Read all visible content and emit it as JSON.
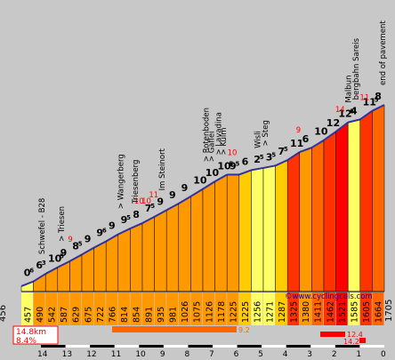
{
  "chart_data": {
    "type": "bar",
    "title": "",
    "source": "©www.cyclingcols.com",
    "start_altitude": "456",
    "end_altitude": "1705",
    "km_ticks": [
      "14",
      "13",
      "12",
      "11",
      "10",
      "9",
      "8",
      "7",
      "6",
      "5",
      "4",
      "3",
      "2",
      "1",
      "0"
    ],
    "segments": [
      {
        "grade": "0",
        "sub": "6",
        "alt": "457",
        "color": "#ffff66"
      },
      {
        "grade": "6",
        "sub": "3",
        "alt": "490",
        "color": "#ff9900"
      },
      {
        "grade": "10",
        "sub": "5",
        "alt": "542",
        "color": "#ff9900"
      },
      {
        "grade": "9",
        "sub": "",
        "alt": "587",
        "color": "#ff9900"
      },
      {
        "grade": "8",
        "sub": "5",
        "alt": "629",
        "color": "#ff9900"
      },
      {
        "grade": "9",
        "sub": "",
        "alt": "675",
        "color": "#ff9900"
      },
      {
        "grade": "9",
        "sub": "6",
        "alt": "722",
        "color": "#ff9900"
      },
      {
        "grade": "9",
        "sub": "",
        "alt": "766",
        "color": "#ff9900"
      },
      {
        "grade": "9",
        "sub": "5",
        "alt": "814",
        "color": "#ff9900"
      },
      {
        "grade": "8",
        "sub": "",
        "alt": "854",
        "color": "#ff9900"
      },
      {
        "grade": "7",
        "sub": "5",
        "alt": "891",
        "color": "#ff9900"
      },
      {
        "grade": "9",
        "sub": "",
        "alt": "935",
        "color": "#ff9900"
      },
      {
        "grade": "9",
        "sub": "",
        "alt": "981",
        "color": "#ff9900"
      },
      {
        "grade": "9",
        "sub": "",
        "alt": "1026",
        "color": "#ff9900"
      },
      {
        "grade": "10",
        "sub": "",
        "alt": "1075",
        "color": "#ff9900"
      },
      {
        "grade": "10",
        "sub": "",
        "alt": "1126",
        "color": "#ff9900"
      },
      {
        "grade": "10",
        "sub": "5",
        "alt": "1178",
        "color": "#ff9900"
      },
      {
        "grade": "9",
        "sub": "5",
        "alt": "1225",
        "color": "#ff9900"
      },
      {
        "grade": "6",
        "sub": "",
        "alt": "1225",
        "color": "#ffcc00"
      },
      {
        "grade": "2",
        "sub": "5",
        "alt": "1256",
        "color": "#ffff66"
      },
      {
        "grade": "3",
        "sub": "5",
        "alt": "1271",
        "color": "#ffff66"
      },
      {
        "grade": "7",
        "sub": "5",
        "alt": "1287",
        "color": "#ffcc00"
      },
      {
        "grade": "11",
        "sub": "",
        "alt": "1325",
        "color": "#ff3300"
      },
      {
        "grade": "6",
        "sub": "",
        "alt": "1380",
        "color": "#ff9900"
      },
      {
        "grade": "10",
        "sub": "",
        "alt": "1411",
        "color": "#ff6600"
      },
      {
        "grade": "12",
        "sub": "",
        "alt": "1462",
        "color": "#ff3300"
      },
      {
        "grade": "12",
        "sub": "5",
        "alt": "1521",
        "color": "#ff0000"
      },
      {
        "grade": "4",
        "sub": "",
        "alt": "1585",
        "color": "#ffff66"
      },
      {
        "grade": "11",
        "sub": "5",
        "alt": "1605",
        "color": "#ff3300"
      },
      {
        "grade": "8",
        "sub": "",
        "alt": "1664",
        "color": "#ff6600"
      }
    ],
    "peak_labels": [
      {
        "value": "9",
        "km": 12.9
      },
      {
        "value": "10",
        "km": 10.2
      },
      {
        "value": "10",
        "km": 9.9
      },
      {
        "value": "11",
        "km": 9.6
      },
      {
        "value": "10",
        "km": 6.4
      },
      {
        "value": "9",
        "km": 3.6
      },
      {
        "value": "14",
        "km": 2.0
      },
      {
        "value": "11",
        "km": 1.0
      }
    ],
    "place_labels": [
      {
        "name": "Schwefel - B28",
        "km": 14.0
      },
      {
        "name": "> Triesen",
        "km": 13.2
      },
      {
        "name": "> Wangerberg",
        "km": 10.8
      },
      {
        "name": "Triesenberg",
        "km": 10.2
      },
      {
        "name": "Im Steinort",
        "km": 9.1
      },
      {
        "name": "> Rotenboden",
        "km": 7.3
      },
      {
        "name": "> Gaflei",
        "km": 7.1
      },
      {
        "name": "> Lavadina",
        "km": 6.8
      },
      {
        "name": "> Kulm",
        "km": 6.6
      },
      {
        "name": "Wisli",
        "km": 5.2
      },
      {
        "name": "> Steg",
        "km": 4.9
      },
      {
        "name": "Malbun",
        "km": 1.5
      },
      {
        "name": "bergbahn Sareis",
        "km": 1.2
      },
      {
        "name": "end of pavement",
        "km": 0.1
      }
    ],
    "summary": {
      "distance": "14.8km",
      "avg_grade": "8.4%",
      "bar1": "9.2",
      "bar2": "12.4",
      "bar3": "14.2"
    }
  }
}
